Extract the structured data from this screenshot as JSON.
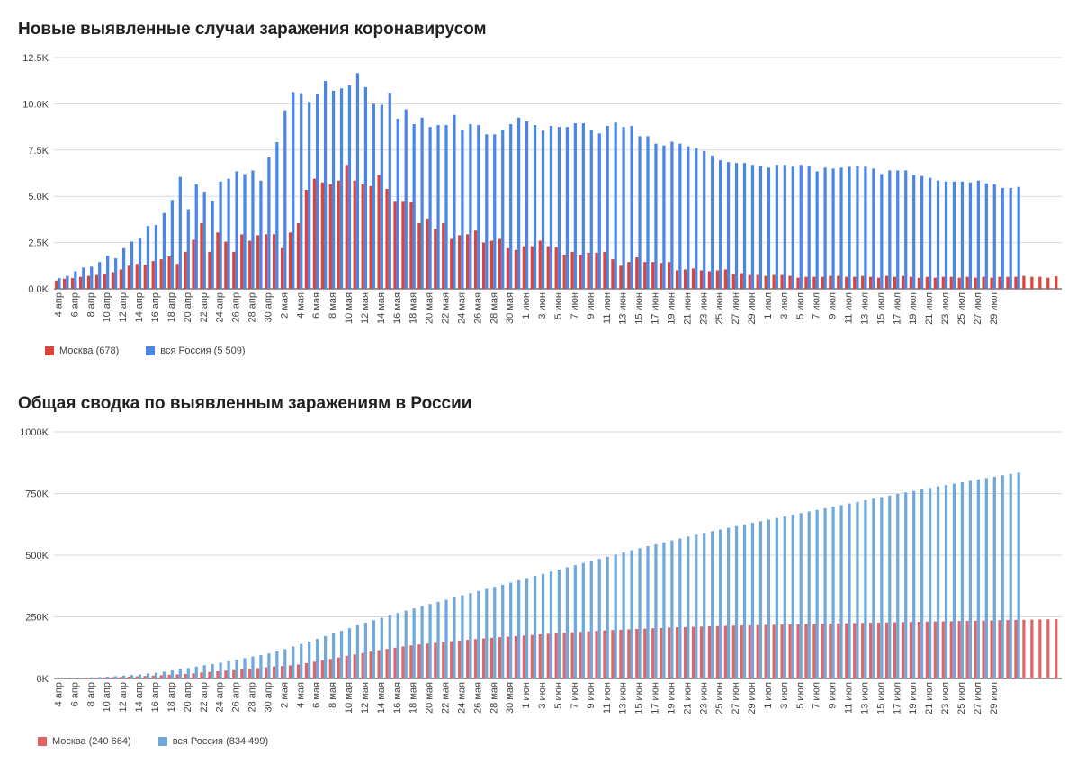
{
  "chart_data": [
    {
      "type": "bar",
      "title": "Новые выявленные случаи заражения коронавирусом",
      "y_ticks": [
        "0.0K",
        "2.5K",
        "5.0K",
        "7.5K",
        "10.0K",
        "12.5K"
      ],
      "ylim": [
        0,
        12500
      ],
      "grid": true,
      "legend_position": "bottom-left",
      "x_tick_labels": [
        "4 апр",
        "6 апр",
        "8 апр",
        "10 апр",
        "12 апр",
        "14 апр",
        "16 апр",
        "18 апр",
        "20 апр",
        "22 апр",
        "24 апр",
        "26 апр",
        "28 апр",
        "30 апр",
        "2 мая",
        "4 мая",
        "6 мая",
        "8 мая",
        "10 мая",
        "12 мая",
        "14 мая",
        "16 мая",
        "18 мая",
        "20 мая",
        "22 мая",
        "24 мая",
        "26 мая",
        "28 мая",
        "30 мая",
        "1 июн",
        "3 июн",
        "5 июн",
        "7 июн",
        "9 июн",
        "11 июн",
        "13 июн",
        "15 июн",
        "17 июн",
        "19 июн",
        "21 июн",
        "23 июн",
        "25 июн",
        "27 июн",
        "29 июн",
        "1 июл",
        "3 июл",
        "5 июл",
        "7 июл",
        "9 июл",
        "11 июл",
        "13 июл",
        "15 июл",
        "17 июл",
        "19 июл",
        "21 июл",
        "23 июл",
        "25 июл",
        "27 июл",
        "29 июл"
      ],
      "series": [
        {
          "name": "Москва (678)",
          "color": "#db4437",
          "values": [
            450,
            550,
            580,
            650,
            700,
            750,
            820,
            900,
            1050,
            1250,
            1350,
            1300,
            1500,
            1600,
            1750,
            1350,
            2000,
            2650,
            3550,
            2000,
            3050,
            2550,
            2000,
            2950,
            2600,
            2900,
            2950,
            2950,
            2200,
            3050,
            3550,
            5350,
            5950,
            5750,
            5650,
            5850,
            6700,
            5850,
            5650,
            5550,
            6150,
            5400,
            4750,
            4750,
            4700,
            3550,
            3800,
            3250,
            3550,
            2700,
            2900,
            2950,
            3150,
            2500,
            2600,
            2700,
            2200,
            2100,
            2300,
            2300,
            2600,
            2300,
            2250,
            1850,
            2000,
            1850,
            1950,
            1950,
            2000,
            1600,
            1250,
            1450,
            1700,
            1450,
            1450,
            1400,
            1450,
            1000,
            1050,
            1100,
            1000,
            950,
            1000,
            1050,
            800,
            850,
            750,
            750,
            700,
            750,
            750,
            700,
            600,
            650,
            650,
            650,
            700,
            700,
            650,
            650,
            700,
            650,
            600,
            700,
            650,
            700,
            650,
            600,
            650,
            600,
            650,
            650,
            600,
            650,
            600,
            650,
            600,
            650,
            650,
            650,
            700,
            650,
            650,
            600,
            678
          ]
        },
        {
          "name": "вся Россия (5 509)",
          "color": "#4a86e8",
          "values": [
            580,
            700,
            950,
            1150,
            1200,
            1450,
            1790,
            1650,
            2200,
            2550,
            2750,
            3400,
            3450,
            4100,
            4800,
            6050,
            4300,
            5650,
            5250,
            4770,
            5800,
            5950,
            6350,
            6200,
            6400,
            5850,
            7100,
            7930,
            9650,
            10630,
            10580,
            10100,
            10550,
            11230,
            10700,
            10830,
            11000,
            11660,
            10900,
            10000,
            9950,
            10600,
            9200,
            9700,
            8900,
            9250,
            8750,
            8850,
            8850,
            9400,
            8600,
            8900,
            8850,
            8350,
            8350,
            8600,
            8900,
            9250,
            9050,
            8850,
            8550,
            8800,
            8750,
            8750,
            8950,
            8950,
            8600,
            8400,
            8800,
            8990,
            8750,
            8800,
            8250,
            8250,
            7850,
            7750,
            7950,
            7850,
            7700,
            7600,
            7450,
            7200,
            6950,
            6850,
            6800,
            6800,
            6700,
            6650,
            6550,
            6700,
            6700,
            6600,
            6700,
            6650,
            6350,
            6550,
            6500,
            6550,
            6600,
            6650,
            6600,
            6500,
            6200,
            6400,
            6400,
            6400,
            6150,
            6100,
            6000,
            5850,
            5800,
            5800,
            5800,
            5750,
            5850,
            5700,
            5650,
            5450,
            5450,
            5509
          ]
        }
      ]
    },
    {
      "type": "bar",
      "title": "Общая сводка по выявленным заражениям в России",
      "y_ticks": [
        "0K",
        "250K",
        "500K",
        "750K",
        "1000K"
      ],
      "ylim": [
        0,
        1000000
      ],
      "grid": true,
      "legend_position": "bottom-left",
      "x_tick_labels": [
        "4 апр",
        "6 апр",
        "8 апр",
        "10 апр",
        "12 апр",
        "14 апр",
        "16 апр",
        "18 апр",
        "20 апр",
        "22 апр",
        "24 апр",
        "26 апр",
        "28 апр",
        "30 апр",
        "2 мая",
        "4 мая",
        "6 мая",
        "8 мая",
        "10 мая",
        "12 мая",
        "14 мая",
        "16 мая",
        "18 мая",
        "20 мая",
        "22 мая",
        "24 мая",
        "26 мая",
        "28 мая",
        "30 мая",
        "1 июн",
        "3 июн",
        "5 июн",
        "7 июн",
        "9 июн",
        "11 июн",
        "13 июн",
        "15 июн",
        "17 июн",
        "19 июн",
        "21 июн",
        "23 июн",
        "25 июн",
        "27 июн",
        "29 июн",
        "1 июл",
        "3 июл",
        "5 июл",
        "7 июл",
        "9 июл",
        "11 июл",
        "13 июл",
        "15 июл",
        "17 июл",
        "19 июл",
        "21 июл",
        "23 июл",
        "25 июл",
        "27 июл",
        "29 июл"
      ],
      "cumulative_from_first_chart": true,
      "final_values": [
        240664,
        834499
      ],
      "series": [
        {
          "name": "Москва (240 664)",
          "color": "#e06666"
        },
        {
          "name": "вся Россия (834 499)",
          "color": "#6fa8dc"
        }
      ]
    }
  ]
}
